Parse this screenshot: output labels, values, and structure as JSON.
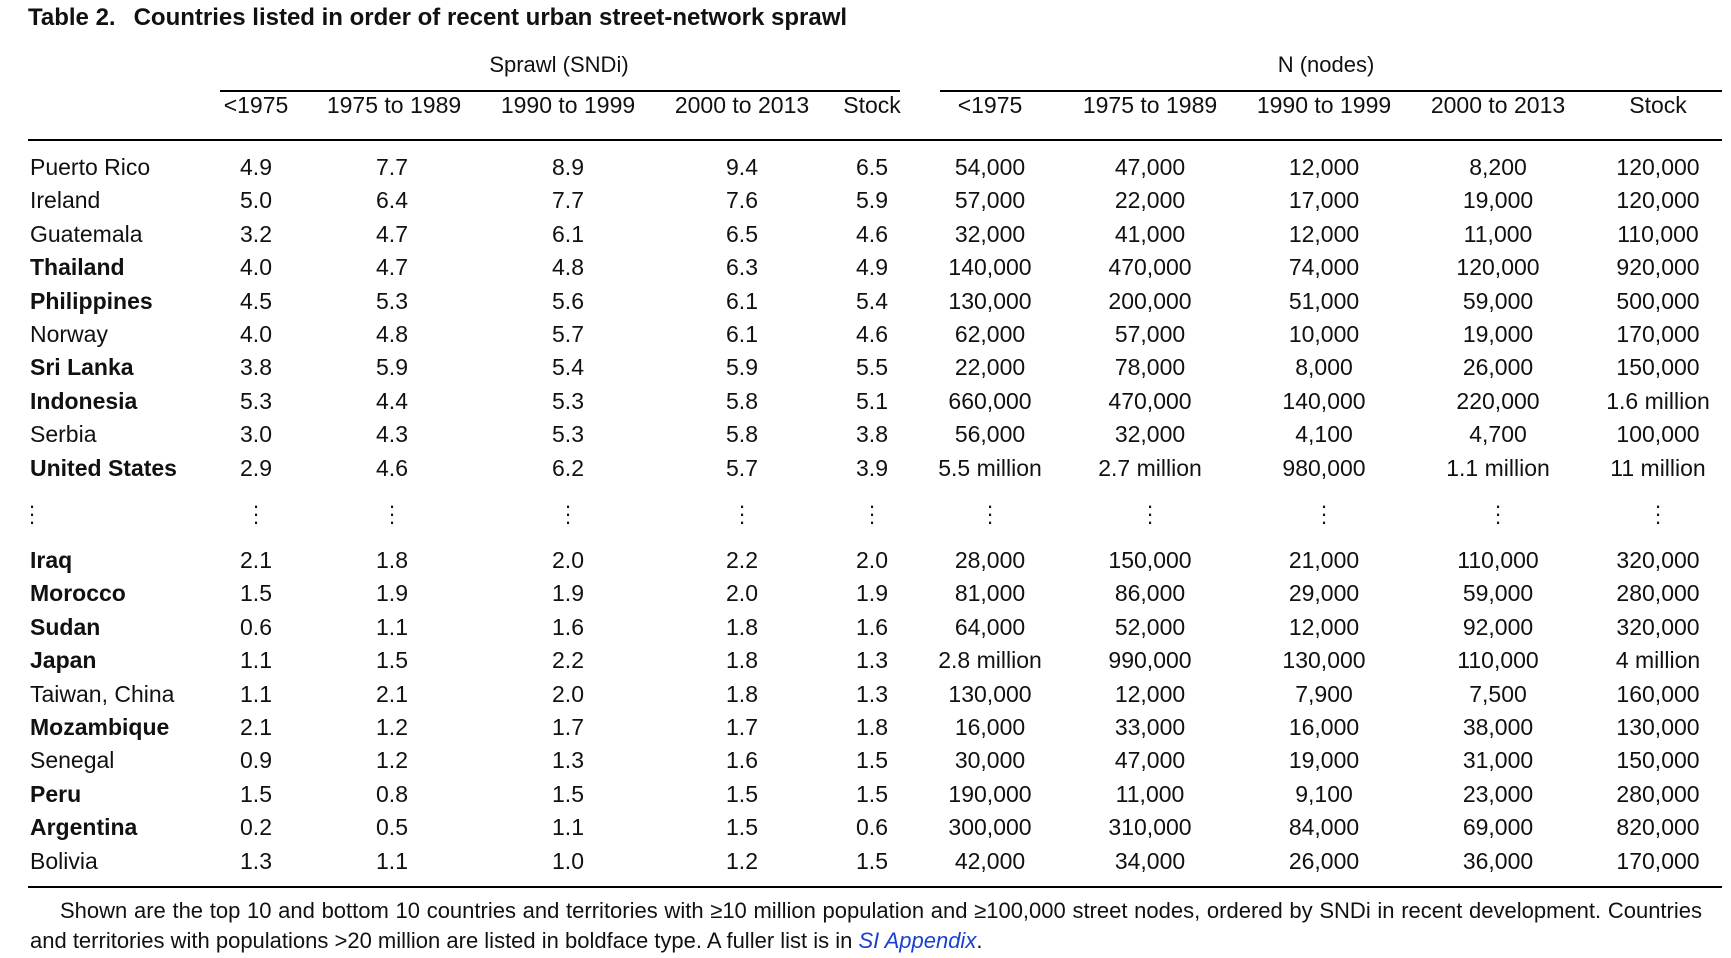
{
  "caption": {
    "label": "Table 2.",
    "title": "Countries listed in order of recent urban street-network sprawl"
  },
  "groups": {
    "sprawl": "Sprawl (SNDi)",
    "nodes": "N (nodes)"
  },
  "columns": [
    "<1975",
    "1975 to 1989",
    "1990 to 1999",
    "2000 to 2013",
    "Stock",
    "<1975",
    "1975 to 1989",
    "1990 to 1999",
    "2000 to 2013",
    "Stock"
  ],
  "rows_top": [
    {
      "country": "Puerto Rico",
      "bold": false,
      "values": [
        "4.9",
        "7.7",
        "8.9",
        "9.4",
        "6.5",
        "54,000",
        "47,000",
        "12,000",
        "8,200",
        "120,000"
      ]
    },
    {
      "country": "Ireland",
      "bold": false,
      "values": [
        "5.0",
        "6.4",
        "7.7",
        "7.6",
        "5.9",
        "57,000",
        "22,000",
        "17,000",
        "19,000",
        "120,000"
      ]
    },
    {
      "country": "Guatemala",
      "bold": false,
      "values": [
        "3.2",
        "4.7",
        "6.1",
        "6.5",
        "4.6",
        "32,000",
        "41,000",
        "12,000",
        "11,000",
        "110,000"
      ]
    },
    {
      "country": "Thailand",
      "bold": true,
      "values": [
        "4.0",
        "4.7",
        "4.8",
        "6.3",
        "4.9",
        "140,000",
        "470,000",
        "74,000",
        "120,000",
        "920,000"
      ]
    },
    {
      "country": "Philippines",
      "bold": true,
      "values": [
        "4.5",
        "5.3",
        "5.6",
        "6.1",
        "5.4",
        "130,000",
        "200,000",
        "51,000",
        "59,000",
        "500,000"
      ]
    },
    {
      "country": "Norway",
      "bold": false,
      "values": [
        "4.0",
        "4.8",
        "5.7",
        "6.1",
        "4.6",
        "62,000",
        "57,000",
        "10,000",
        "19,000",
        "170,000"
      ]
    },
    {
      "country": "Sri Lanka",
      "bold": true,
      "values": [
        "3.8",
        "5.9",
        "5.4",
        "5.9",
        "5.5",
        "22,000",
        "78,000",
        "8,000",
        "26,000",
        "150,000"
      ]
    },
    {
      "country": "Indonesia",
      "bold": true,
      "values": [
        "5.3",
        "4.4",
        "5.3",
        "5.8",
        "5.1",
        "660,000",
        "470,000",
        "140,000",
        "220,000",
        "1.6 million"
      ]
    },
    {
      "country": "Serbia",
      "bold": false,
      "values": [
        "3.0",
        "4.3",
        "5.3",
        "5.8",
        "3.8",
        "56,000",
        "32,000",
        "4,100",
        "4,700",
        "100,000"
      ]
    },
    {
      "country": "United States",
      "bold": true,
      "values": [
        "2.9",
        "4.6",
        "6.2",
        "5.7",
        "3.9",
        "5.5 million",
        "2.7 million",
        "980,000",
        "1.1 million",
        "11 million"
      ]
    }
  ],
  "rows_bottom": [
    {
      "country": "Iraq",
      "bold": true,
      "values": [
        "2.1",
        "1.8",
        "2.0",
        "2.2",
        "2.0",
        "28,000",
        "150,000",
        "21,000",
        "110,000",
        "320,000"
      ]
    },
    {
      "country": "Morocco",
      "bold": true,
      "values": [
        "1.5",
        "1.9",
        "1.9",
        "2.0",
        "1.9",
        "81,000",
        "86,000",
        "29,000",
        "59,000",
        "280,000"
      ]
    },
    {
      "country": "Sudan",
      "bold": true,
      "values": [
        "0.6",
        "1.1",
        "1.6",
        "1.8",
        "1.6",
        "64,000",
        "52,000",
        "12,000",
        "92,000",
        "320,000"
      ]
    },
    {
      "country": "Japan",
      "bold": true,
      "values": [
        "1.1",
        "1.5",
        "2.2",
        "1.8",
        "1.3",
        "2.8 million",
        "990,000",
        "130,000",
        "110,000",
        "4 million"
      ]
    },
    {
      "country": "Taiwan, China",
      "bold": false,
      "values": [
        "1.1",
        "2.1",
        "2.0",
        "1.8",
        "1.3",
        "130,000",
        "12,000",
        "7,900",
        "7,500",
        "160,000"
      ]
    },
    {
      "country": "Mozambique",
      "bold": true,
      "values": [
        "2.1",
        "1.2",
        "1.7",
        "1.7",
        "1.8",
        "16,000",
        "33,000",
        "16,000",
        "38,000",
        "130,000"
      ]
    },
    {
      "country": "Senegal",
      "bold": false,
      "values": [
        "0.9",
        "1.2",
        "1.3",
        "1.6",
        "1.5",
        "30,000",
        "47,000",
        "19,000",
        "31,000",
        "150,000"
      ]
    },
    {
      "country": "Peru",
      "bold": true,
      "values": [
        "1.5",
        "0.8",
        "1.5",
        "1.5",
        "1.5",
        "190,000",
        "11,000",
        "9,100",
        "23,000",
        "280,000"
      ]
    },
    {
      "country": "Argentina",
      "bold": true,
      "values": [
        "0.2",
        "0.5",
        "1.1",
        "1.5",
        "0.6",
        "300,000",
        "310,000",
        "84,000",
        "69,000",
        "820,000"
      ]
    },
    {
      "country": "Bolivia",
      "bold": false,
      "values": [
        "1.3",
        "1.1",
        "1.0",
        "1.2",
        "1.5",
        "42,000",
        "34,000",
        "26,000",
        "36,000",
        "170,000"
      ]
    }
  ],
  "footnote": {
    "text": "Shown are the top 10 and bottom 10 countries and territories with ≥10 million population and ≥100,000 street nodes, ordered by SNDi in recent development. Countries and territories with populations >20 million are listed in boldface type. A fuller list is in ",
    "link": "SI Appendix",
    "end": "."
  }
}
